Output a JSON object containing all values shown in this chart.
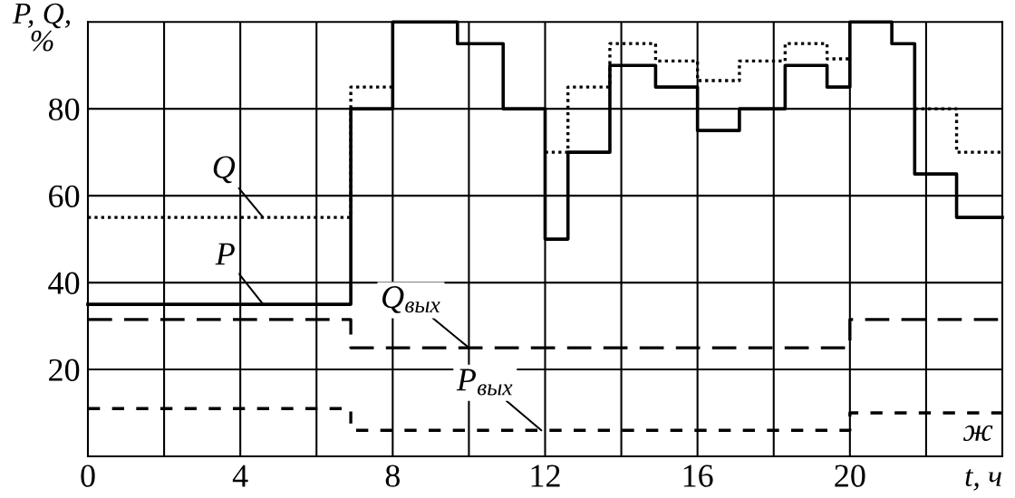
{
  "chart_data": {
    "type": "step",
    "xlabel": "t, ч",
    "ylabel": "P, Q,\n%",
    "xlim": [
      0,
      24
    ],
    "ylim": [
      0,
      100
    ],
    "xticks": [
      0,
      {
        "value": 2,
        "label": null
      },
      4,
      {
        "value": 6,
        "label": null
      },
      8,
      {
        "value": 10,
        "label": null
      },
      12,
      {
        "value": 14,
        "label": null
      },
      16,
      {
        "value": 18,
        "label": null
      },
      20,
      {
        "value": 22,
        "label": null
      }
    ],
    "yticks": [
      20,
      40,
      60,
      80
    ],
    "grid": true,
    "series": [
      {
        "color": "#000000",
        "line_style": "solid",
        "x": [
          0,
          6.9,
          8,
          9.7,
          10.9,
          12,
          12.6,
          13.7,
          14.9,
          16,
          17.1,
          18.3,
          19.4,
          20,
          21.1,
          21.7,
          22.8,
          24
        ],
        "values": [
          35,
          80,
          100,
          95,
          80,
          50,
          70,
          90,
          85,
          75,
          80,
          90,
          85,
          100,
          95,
          65,
          55,
          55
        ]
      },
      {
        "color": "#000000",
        "line_style": "dotted",
        "x": [
          0,
          6.9,
          8,
          12,
          12.6,
          13.7,
          14.9,
          16,
          17.1,
          18.3,
          19.4,
          20,
          21.7,
          22.8,
          24
        ],
        "values": [
          55,
          85,
          null,
          70,
          85,
          95,
          91,
          86.5,
          91,
          95,
          91.5,
          null,
          80,
          70,
          70
        ]
      },
      {
        "color": "#000000",
        "line_style": "dashed",
        "x": [
          0,
          6.9,
          20,
          24
        ],
        "values": [
          31.5,
          25,
          31.5,
          31.5
        ]
      },
      {
        "color": "#000000",
        "line_style": "dashed",
        "x": [
          0,
          6.9,
          20,
          24
        ],
        "values": [
          11,
          6,
          10,
          10
        ]
      }
    ],
    "annotations": [
      {
        "text": "Q",
        "x": 4.6,
        "y": 55
      },
      {
        "text": "P",
        "x": 4.6,
        "y": 35
      },
      {
        "text": "Q$_{вых}$",
        "x": 10,
        "y": 25
      },
      {
        "text": "P$_{вых}$",
        "x": 11.9,
        "y": 6
      },
      "ж"
    ]
  }
}
